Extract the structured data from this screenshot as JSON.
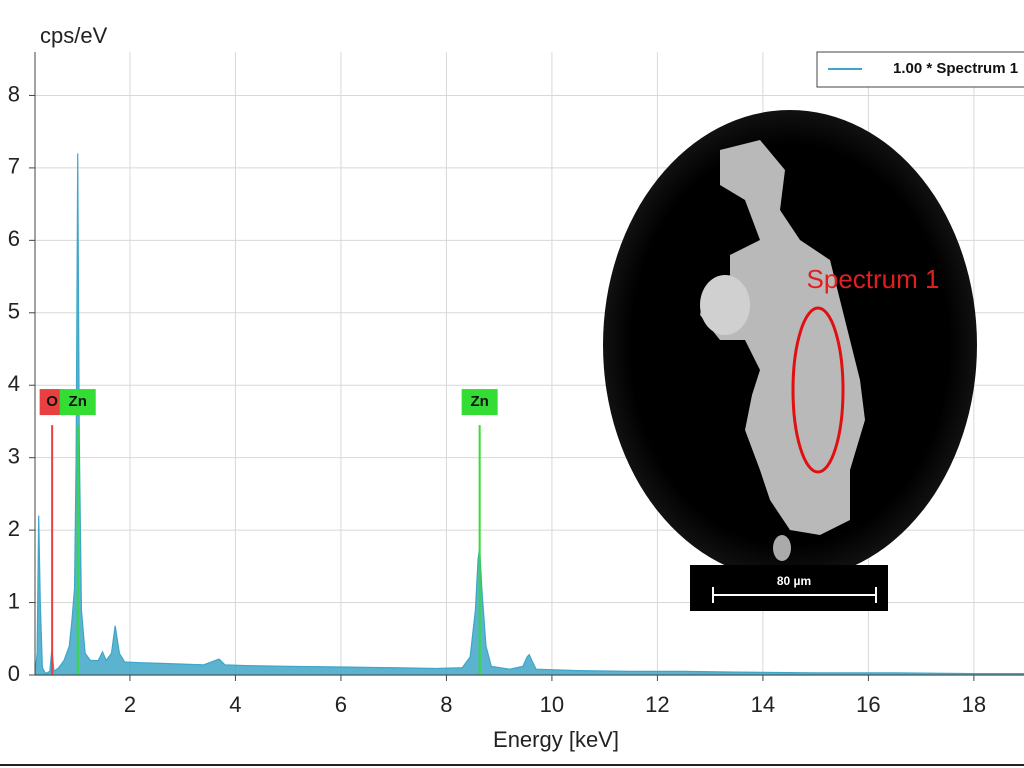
{
  "chart_data": {
    "type": "spectrum",
    "y_label": "cps/eV",
    "x_label": "Energy [keV]",
    "xlim": [
      0.2,
      18.95
    ],
    "ylim": [
      0,
      8.6
    ],
    "xticks": [
      2,
      4,
      6,
      8,
      10,
      12,
      14,
      16,
      18
    ],
    "yticks": [
      0,
      1,
      2,
      3,
      4,
      5,
      6,
      7,
      8
    ],
    "grid": true,
    "legend": "top-right",
    "series": [
      {
        "name": "1.00 * Spectrum 1",
        "color": "#3ea6c8",
        "x": [
          0.2,
          0.24,
          0.27,
          0.3,
          0.34,
          0.4,
          0.48,
          0.52,
          0.56,
          0.65,
          0.75,
          0.85,
          0.9,
          0.95,
          0.98,
          1.01,
          1.04,
          1.08,
          1.15,
          1.25,
          1.4,
          1.48,
          1.55,
          1.65,
          1.72,
          1.8,
          1.9,
          2.2,
          2.6,
          3,
          3.4,
          3.69,
          3.8,
          4.2,
          5,
          6,
          7,
          7.8,
          8.3,
          8.45,
          8.55,
          8.6,
          8.63,
          8.67,
          8.75,
          8.85,
          9.2,
          9.45,
          9.53,
          9.57,
          9.62,
          9.7,
          10.5,
          11.5,
          12.5,
          13.5,
          15,
          16.5,
          18,
          18.95
        ],
        "values": [
          0,
          0.3,
          2.2,
          1.0,
          0.1,
          0.02,
          0.05,
          0.35,
          0.05,
          0.1,
          0.2,
          0.4,
          0.75,
          1.2,
          3.0,
          7.2,
          3.2,
          0.9,
          0.3,
          0.2,
          0.2,
          0.32,
          0.2,
          0.3,
          0.68,
          0.3,
          0.18,
          0.17,
          0.16,
          0.15,
          0.14,
          0.22,
          0.14,
          0.13,
          0.12,
          0.11,
          0.1,
          0.09,
          0.1,
          0.25,
          0.9,
          1.6,
          1.75,
          1.2,
          0.4,
          0.12,
          0.08,
          0.12,
          0.25,
          0.28,
          0.2,
          0.08,
          0.06,
          0.05,
          0.05,
          0.04,
          0.03,
          0.03,
          0.02,
          0.02
        ]
      }
    ],
    "element_lines": [
      {
        "label": "O",
        "x": 0.525,
        "height": 3.45,
        "color": "#e84040"
      },
      {
        "label": "Zn",
        "x": 1.01,
        "height": 3.45,
        "color": "#33dd33"
      },
      {
        "label": "Zn",
        "x": 8.63,
        "height": 3.45,
        "color": "#33dd33"
      }
    ],
    "inset": {
      "region_label": "Spectrum 1",
      "scale_bar": "80 µm"
    }
  }
}
